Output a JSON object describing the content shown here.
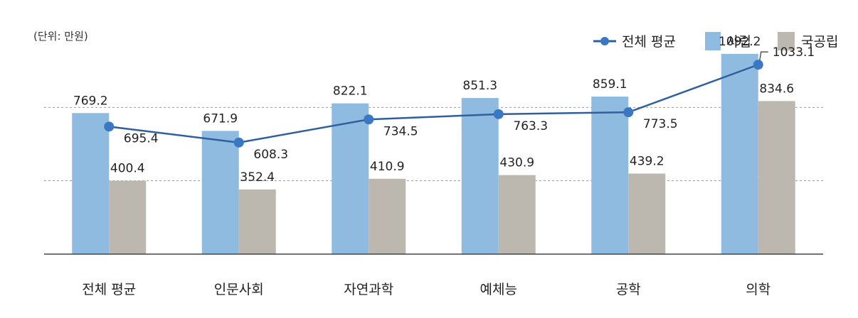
{
  "unit_label": "(단위: 만원)",
  "legend": {
    "avg": "전체 평균",
    "private": "사립",
    "public": "국공립"
  },
  "colors": {
    "private": "#8fbbe0",
    "public": "#bcb8b0",
    "line": "#2f5f9e",
    "dot": "#3a78c4",
    "grid": "#9a9a9a",
    "axis": "#444444"
  },
  "chart_data": {
    "type": "bar",
    "categories": [
      "전체 평균",
      "인문사회",
      "자연과학",
      "예체능",
      "공학",
      "의학"
    ],
    "series": [
      {
        "name": "사립",
        "type": "bar",
        "values": [
          769.2,
          671.9,
          822.1,
          851.3,
          859.1,
          1092.2
        ]
      },
      {
        "name": "국공립",
        "type": "bar",
        "values": [
          400.4,
          352.4,
          410.9,
          430.9,
          439.2,
          834.6
        ]
      },
      {
        "name": "전체 평균",
        "type": "line",
        "values": [
          695.4,
          608.3,
          734.5,
          763.3,
          773.5,
          1033.1
        ]
      }
    ],
    "value_labels": {
      "private": [
        "769.2",
        "671.9",
        "822.1",
        "851.3",
        "859.1",
        "1092.2"
      ],
      "public": [
        "400.4",
        "352.4",
        "410.9",
        "430.9",
        "439.2",
        "834.6"
      ],
      "avg": [
        "695.4",
        "608.3",
        "734.5",
        "763.3",
        "773.5",
        "1033.1"
      ]
    },
    "ylabel": "",
    "xlabel": "",
    "ylim": [
      0,
      1200
    ],
    "gridlines": [
      400,
      800
    ],
    "legend_position": "top-right"
  }
}
